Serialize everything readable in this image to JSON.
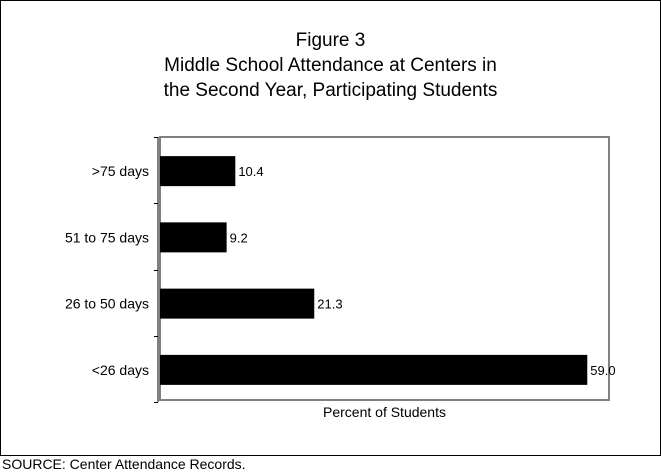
{
  "chart_data": {
    "type": "bar",
    "orientation": "horizontal",
    "title": "Figure 3",
    "subtitle": [
      "Middle School Attendance at Centers in",
      "the Second Year, Participating Students"
    ],
    "xlabel": "Percent of Students",
    "ylabel": "",
    "categories": [
      ">75 days",
      "51 to 75 days",
      "26 to 50 days",
      "<26 days"
    ],
    "values": [
      10.4,
      9.2,
      21.3,
      59.0
    ],
    "value_labels": [
      "10.4",
      "9.2",
      "21.3",
      "59.0"
    ],
    "xlim": [
      0,
      62
    ],
    "bar_color": "#000000",
    "plot_border_color": "#808080",
    "grid": false,
    "legend": "none"
  },
  "source": "SOURCE: Center Attendance Records."
}
